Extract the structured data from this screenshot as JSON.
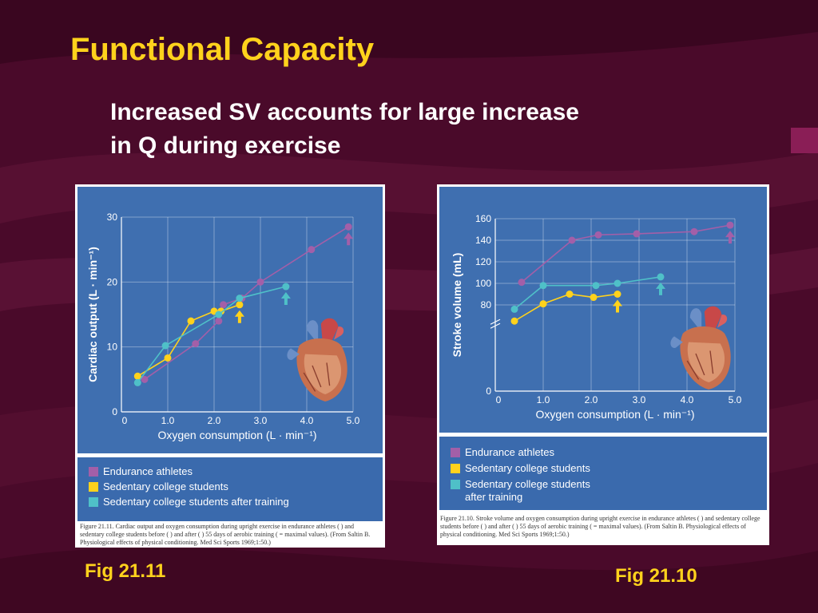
{
  "slide": {
    "title": "Functional Capacity",
    "subtitle_line1": "Increased SV accounts for large increase",
    "subtitle_line2": "in Q during exercise",
    "fig_left_label": "Fig 21.11",
    "fig_right_label": "Fig 21.10"
  },
  "legend": {
    "endurance": "Endurance athletes",
    "sedentary": "Sedentary college students",
    "trained": "Sedentary college students after training",
    "trained_line1": "Sedentary college students",
    "trained_line2": "after training"
  },
  "captions": {
    "fig1": "Figure 21.11. Cardiac output and oxygen consumption during upright exercise in endurance athletes ( ) and sedentary college students before ( ) and after ( ) 55 days of aerobic training ( = maximal values). (From Saltin B. Physiological effects of physical conditioning. Med Sci Sports 1969;1:50.)",
    "fig2": "Figure 21.10. Stroke volume and oxygen consumption during upright exercise in endurance athletes ( ) and sedentary college students before ( ) and after ( ) 55 days of aerobic training ( = maximal values). (From Saltin B. Physiological effects of physical conditioning. Med Sci Sports 1969;1:50.)"
  },
  "colors": {
    "endurance": "#a35fa8",
    "sedentary": "#ffd21c",
    "trained": "#4fc0c8",
    "title": "#ffd21c",
    "panel": "#3f6fb0"
  },
  "chart_data": [
    {
      "type": "line",
      "xlabel": "Oxygen consumption (L · min⁻¹)",
      "ylabel": "Cardiac output (L · min⁻¹)",
      "xlim": [
        0,
        5.0
      ],
      "ylim": [
        0,
        30
      ],
      "x_ticks": [
        "0",
        "1.0",
        "2.0",
        "3.0",
        "4.0",
        "5.0"
      ],
      "y_ticks": [
        "0",
        "10",
        "20",
        "30"
      ],
      "series": [
        {
          "name": "Endurance athletes",
          "x": [
            0.5,
            1.6,
            2.1,
            2.2,
            2.6,
            3.0,
            4.1,
            4.9
          ],
          "y": [
            5,
            10.5,
            14,
            16.5,
            17.5,
            20,
            25,
            28.5
          ]
        },
        {
          "name": "Sedentary college students",
          "x": [
            0.35,
            1.0,
            1.5,
            2.0,
            2.15,
            2.55
          ],
          "y": [
            5.5,
            8.3,
            14,
            15.5,
            15.5,
            16.5
          ]
        },
        {
          "name": "Sedentary college students after training",
          "x": [
            0.35,
            0.95,
            2.1,
            2.55,
            3.55
          ],
          "y": [
            4.5,
            10.2,
            15,
            17.5,
            19.3
          ]
        }
      ]
    },
    {
      "type": "line",
      "xlabel": "Oxygen consumption (L · min⁻¹)",
      "ylabel": "Stroke volume (mL)",
      "xlim": [
        0,
        5.0
      ],
      "ylim": [
        0,
        160
      ],
      "x_ticks": [
        "0",
        "1.0",
        "2.0",
        "3.0",
        "4.0",
        "5.0"
      ],
      "y_ticks": [
        "0",
        "80",
        "100",
        "120",
        "140",
        "160"
      ],
      "series": [
        {
          "name": "Endurance athletes",
          "x": [
            0.55,
            1.6,
            2.15,
            2.95,
            4.15,
            4.9
          ],
          "y": [
            101,
            140,
            145,
            146,
            148,
            154
          ]
        },
        {
          "name": "Sedentary college students",
          "x": [
            0.4,
            1.0,
            1.55,
            2.05,
            2.55
          ],
          "y": [
            65,
            81,
            90,
            87,
            90
          ]
        },
        {
          "name": "Sedentary college students after training",
          "x": [
            0.4,
            1.0,
            2.1,
            2.55,
            3.45
          ],
          "y": [
            76,
            98,
            98,
            100,
            106
          ]
        }
      ]
    }
  ]
}
